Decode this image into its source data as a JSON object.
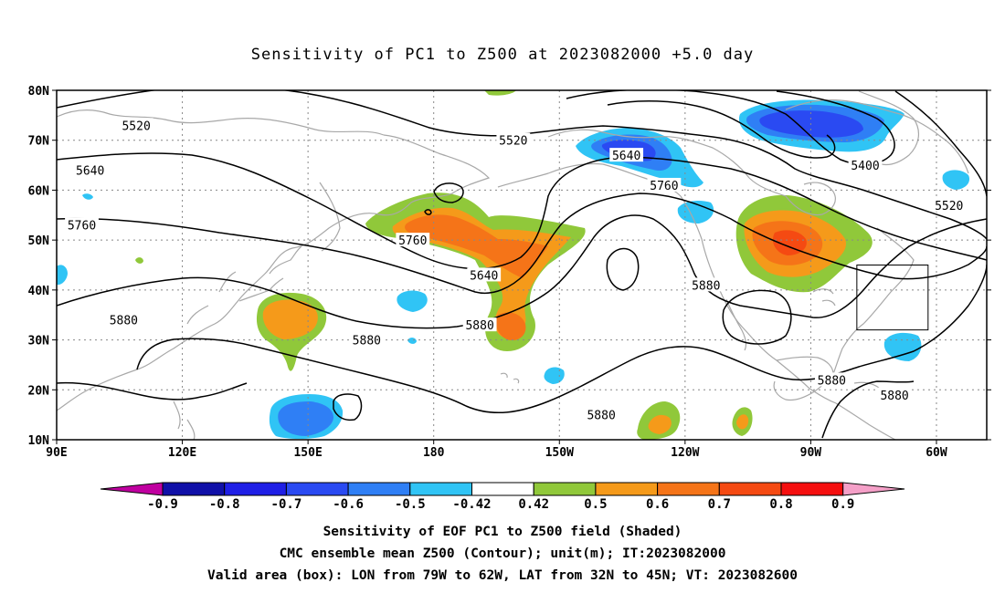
{
  "title": "Sensitivity of PC1 to Z500 at 2023082000 +5.0 day",
  "map": {
    "lon_range": [
      90,
      312
    ],
    "lat_range": [
      10,
      80
    ],
    "lat_ticks": [
      {
        "value": 80,
        "label": "80N"
      },
      {
        "value": 70,
        "label": "70N"
      },
      {
        "value": 60,
        "label": "60N"
      },
      {
        "value": 50,
        "label": "50N"
      },
      {
        "value": 40,
        "label": "40N"
      },
      {
        "value": 30,
        "label": "30N"
      },
      {
        "value": 20,
        "label": "20N"
      },
      {
        "value": 10,
        "label": "10N"
      }
    ],
    "lon_ticks": [
      {
        "value": 90,
        "label": "90E"
      },
      {
        "value": 120,
        "label": "120E"
      },
      {
        "value": 150,
        "label": "150E"
      },
      {
        "value": 180,
        "label": "180"
      },
      {
        "value": 210,
        "label": "150W"
      },
      {
        "value": 240,
        "label": "120W"
      },
      {
        "value": 270,
        "label": "90W"
      },
      {
        "value": 300,
        "label": "60W"
      }
    ],
    "valid_box": {
      "lon": [
        281,
        298
      ],
      "lat": [
        32,
        45
      ]
    },
    "contour_labels": [
      {
        "text": "5520",
        "lon": 109,
        "lat": 73
      },
      {
        "text": "5520",
        "lon": 199,
        "lat": 70
      },
      {
        "text": "5400",
        "lon": 283,
        "lat": 65
      },
      {
        "text": "5520",
        "lon": 303,
        "lat": 57
      },
      {
        "text": "5640",
        "lon": 98,
        "lat": 64
      },
      {
        "text": "5640",
        "lon": 226,
        "lat": 67
      },
      {
        "text": "5640",
        "lon": 192,
        "lat": 43
      },
      {
        "text": "5760",
        "lon": 96,
        "lat": 53
      },
      {
        "text": "5760",
        "lon": 235,
        "lat": 61
      },
      {
        "text": "5760",
        "lon": 175,
        "lat": 50
      },
      {
        "text": "5880",
        "lon": 245,
        "lat": 41
      },
      {
        "text": "5880",
        "lon": 106,
        "lat": 34
      },
      {
        "text": "5880",
        "lon": 164,
        "lat": 30
      },
      {
        "text": "5880",
        "lon": 191,
        "lat": 33
      },
      {
        "text": "5880",
        "lon": 275,
        "lat": 22
      },
      {
        "text": "5880",
        "lon": 290,
        "lat": 19
      },
      {
        "text": "5880",
        "lon": 220,
        "lat": 15
      }
    ]
  },
  "colorbar": {
    "colors": [
      "#1010a8",
      "#1f1fe6",
      "#2a4af2",
      "#2f7ff5",
      "#30c4f5",
      "#ffffff",
      "#90c83a",
      "#f59a1a",
      "#f57418",
      "#f54a12",
      "#f50f0f"
    ],
    "below_color": "#c000a0",
    "above_color": "#f5a0c8",
    "labels": [
      "-0.9",
      "-0.8",
      "-0.7",
      "-0.6",
      "-0.5",
      "-0.42",
      "0.42",
      "0.5",
      "0.6",
      "0.7",
      "0.8",
      "0.9"
    ]
  },
  "footer": {
    "line1": "Sensitivity of EOF PC1 to Z500 field (Shaded)",
    "line2": "CMC ensemble mean Z500 (Contour); unit(m); IT:2023082000",
    "line3": "Valid area (box): LON from 79W to 62W, LAT from 32N to 45N; VT: 2023082600"
  }
}
